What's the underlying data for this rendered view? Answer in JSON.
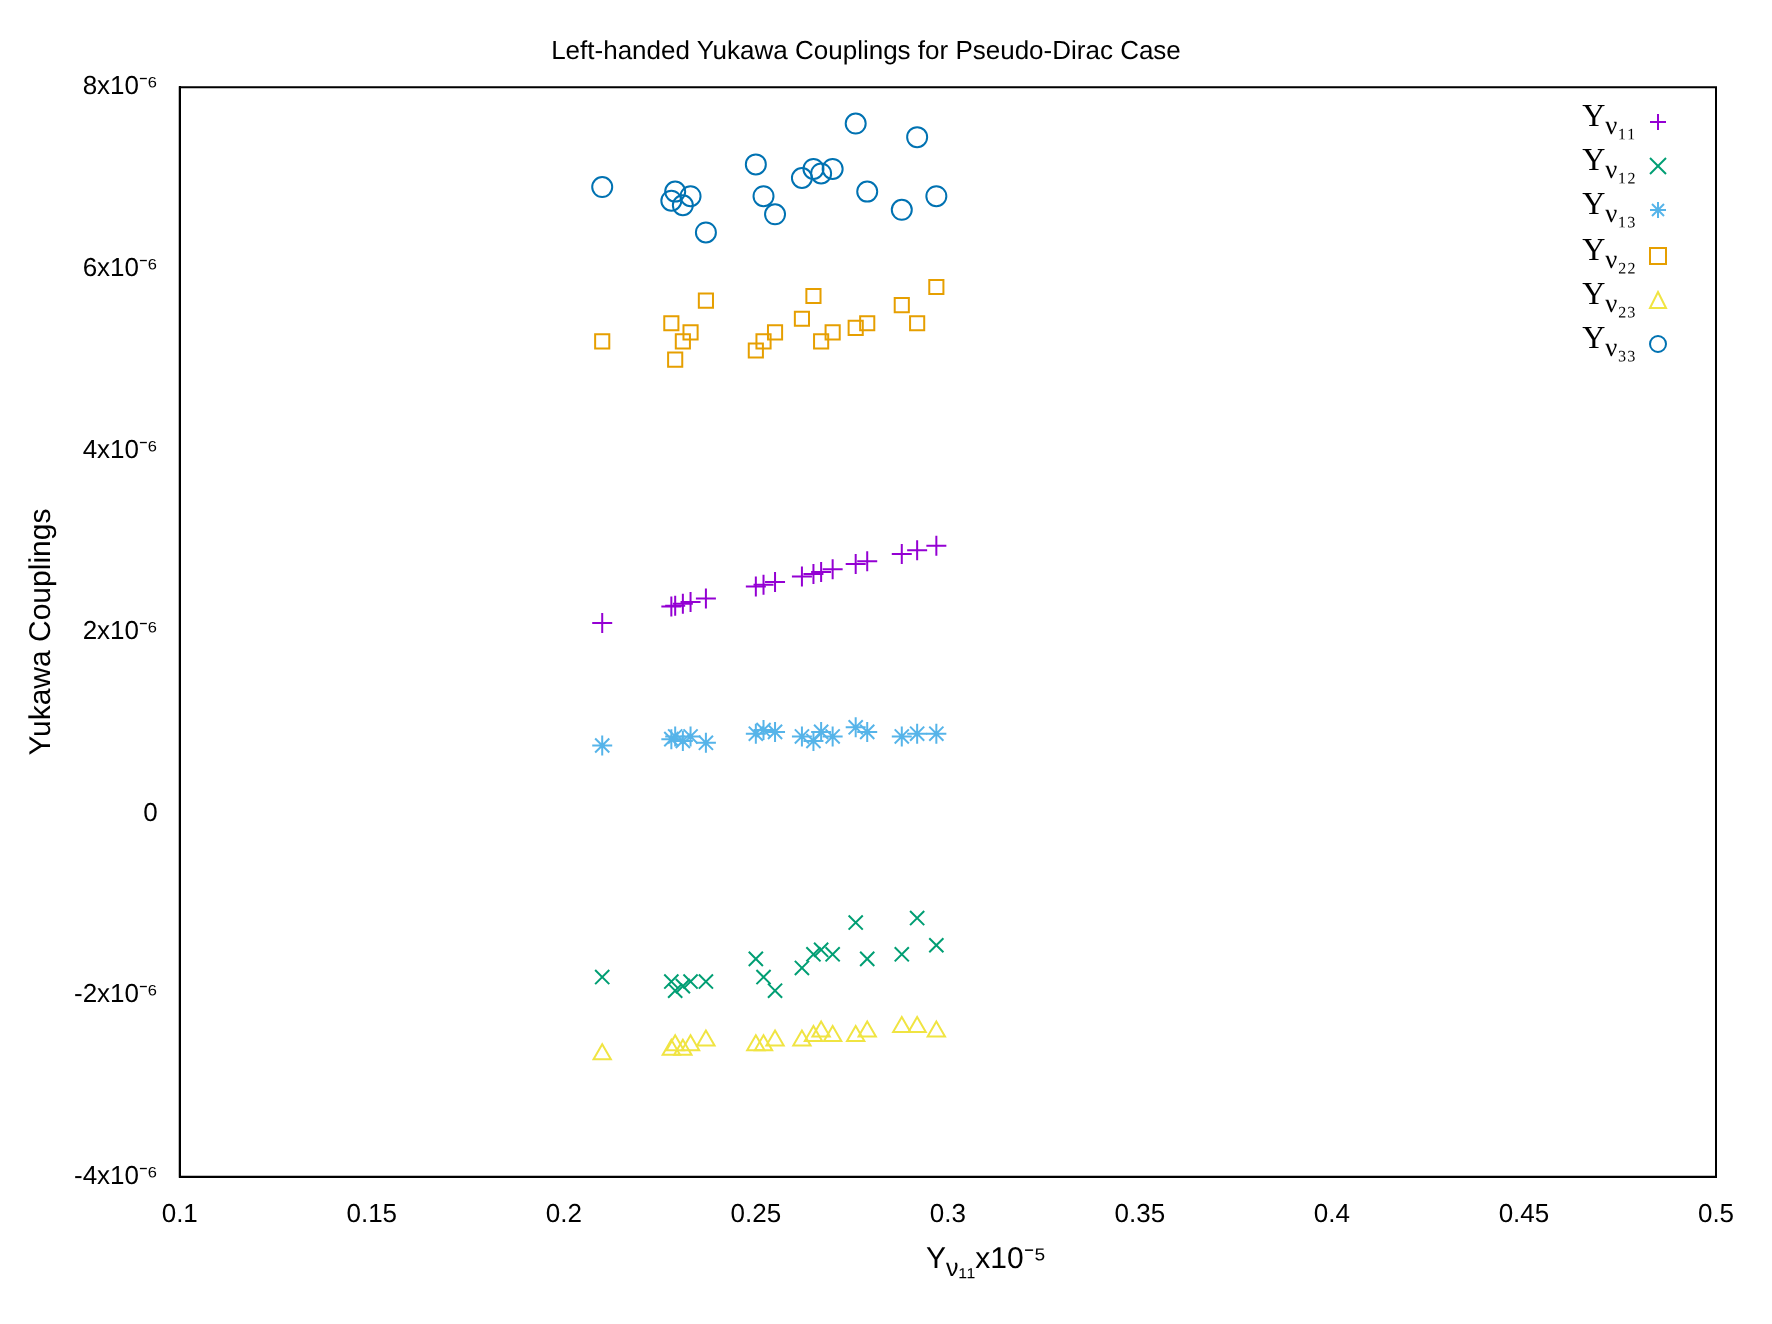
{
  "chart_data": {
    "type": "scatter",
    "title": "Left-handed Yukawa Couplings for Pseudo-Dirac Case",
    "xlabel": "Y$_{ν₁₁}$x10⁻⁵",
    "ylabel": "Yukawa Couplings",
    "x": [
      0.21,
      0.228,
      0.229,
      0.231,
      0.233,
      0.237,
      0.25,
      0.252,
      0.255,
      0.262,
      0.265,
      0.267,
      0.27,
      0.276,
      0.279,
      0.288,
      0.292,
      0.297
    ],
    "series": [
      {
        "name": "Y$_{ν₁₁}$",
        "color": "#9400d3",
        "marker": "plus",
        "values": [
          2.1e-06,
          2.28e-06,
          2.29e-06,
          2.31e-06,
          2.33e-06,
          2.37e-06,
          2.5e-06,
          2.52e-06,
          2.55e-06,
          2.61e-06,
          2.64e-06,
          2.66e-06,
          2.69e-06,
          2.75e-06,
          2.78e-06,
          2.86e-06,
          2.9e-06,
          2.95e-06
        ]
      },
      {
        "name": "Y$_{ν₁₂}$",
        "color": "#009e73",
        "marker": "x",
        "values": [
          -1.8e-06,
          -1.85e-06,
          -1.95e-06,
          -1.9e-06,
          -1.85e-06,
          -1.85e-06,
          -1.6e-06,
          -1.8e-06,
          -1.95e-06,
          -1.7e-06,
          -1.55e-06,
          -1.5e-06,
          -1.55e-06,
          -1.2e-06,
          -1.6e-06,
          -1.55e-06,
          -1.15e-06,
          -1.45e-06
        ]
      },
      {
        "name": "Y$_{ν₁₃}$",
        "color": "#56b4e9",
        "marker": "cross",
        "values": [
          7.5e-07,
          8.2e-07,
          8.5e-07,
          8e-07,
          8.5e-07,
          7.8e-07,
          8.8e-07,
          9.2e-07,
          9e-07,
          8.5e-07,
          8e-07,
          9e-07,
          8.5e-07,
          9.5e-07,
          9e-07,
          8.5e-07,
          8.8e-07,
          8.8e-07
        ]
      },
      {
        "name": "Y$_{ν₂₂}$",
        "color": "#e69f00",
        "marker": "square",
        "values": [
          5.2e-06,
          5.4e-06,
          5e-06,
          5.2e-06,
          5.3e-06,
          5.65e-06,
          5.1e-06,
          5.2e-06,
          5.3e-06,
          5.45e-06,
          5.7e-06,
          5.2e-06,
          5.3e-06,
          5.35e-06,
          5.4e-06,
          5.6e-06,
          5.4e-06,
          5.8e-06
        ]
      },
      {
        "name": "Y$_{ν₂₃}$",
        "color": "#f0e442",
        "marker": "triangle",
        "values": [
          -2.65e-06,
          -2.6e-06,
          -2.55e-06,
          -2.6e-06,
          -2.55e-06,
          -2.5e-06,
          -2.55e-06,
          -2.55e-06,
          -2.5e-06,
          -2.5e-06,
          -2.45e-06,
          -2.4e-06,
          -2.45e-06,
          -2.45e-06,
          -2.4e-06,
          -2.35e-06,
          -2.35e-06,
          -2.4e-06
        ]
      },
      {
        "name": "Y$_{ν₃₃}$",
        "color": "#0072b2",
        "marker": "circle",
        "values": [
          6.9e-06,
          6.75e-06,
          6.85e-06,
          6.7e-06,
          6.8e-06,
          6.4e-06,
          7.15e-06,
          6.8e-06,
          6.6e-06,
          7e-06,
          7.1e-06,
          7.05e-06,
          7.1e-06,
          7.6e-06,
          6.85e-06,
          6.65e-06,
          7.45e-06,
          6.8e-06
        ]
      }
    ],
    "xlim": [
      0.1,
      0.5
    ],
    "xticks": [
      0.1,
      0.15,
      0.2,
      0.25,
      0.3,
      0.35,
      0.4,
      0.45,
      0.5
    ],
    "ylim": [
      -4e-06,
      8e-06
    ],
    "yticks": [
      {
        "value": -4e-06,
        "label": "-4x10⁻⁶"
      },
      {
        "value": -2e-06,
        "label": "-2x10⁻⁶"
      },
      {
        "value": 0,
        "label": "0"
      },
      {
        "value": 2e-06,
        "label": "2x10⁻⁶"
      },
      {
        "value": 4e-06,
        "label": "4x10⁻⁶"
      },
      {
        "value": 6e-06,
        "label": "6x10⁻⁶"
      },
      {
        "value": 8e-06,
        "label": "8x10⁻⁶"
      }
    ],
    "grid": false,
    "legend": "top right"
  }
}
